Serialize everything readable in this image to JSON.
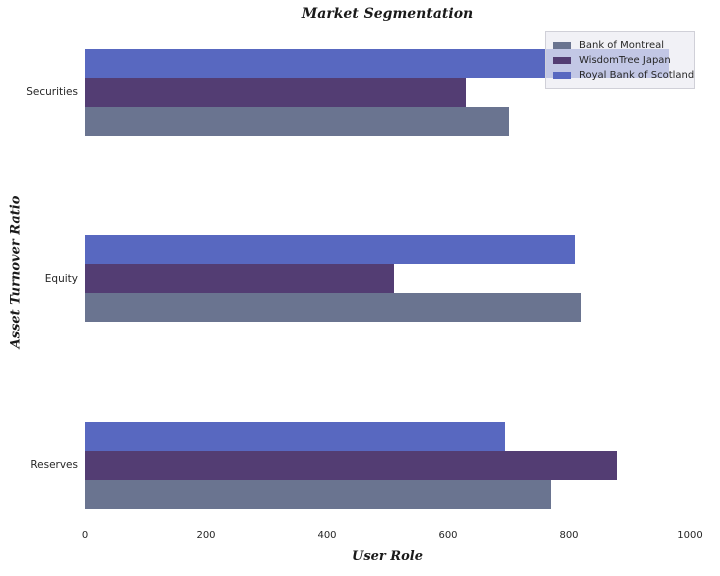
{
  "chart_data": {
    "type": "bar",
    "orientation": "horizontal",
    "title": "Market Segmentation",
    "xlabel": "User Role",
    "ylabel": "Asset Turnover Ratio",
    "categories": [
      "Securities",
      "Equity",
      "Reserves"
    ],
    "series": [
      {
        "name": "Bank of Montreal",
        "color": "#6a7490",
        "values": [
          700,
          820,
          770
        ]
      },
      {
        "name": "WisdomTree Japan",
        "color": "#533d73",
        "values": [
          630,
          510,
          880
        ]
      },
      {
        "name": "Royal Bank of Scotland",
        "color": "#5868c0",
        "values": [
          965,
          810,
          695
        ]
      }
    ],
    "xticks": [
      0,
      200,
      400,
      600,
      800,
      1000
    ],
    "xlim": [
      0,
      1000
    ],
    "legend_position": "upper right",
    "grid": false,
    "background_color": "#ffffff"
  }
}
